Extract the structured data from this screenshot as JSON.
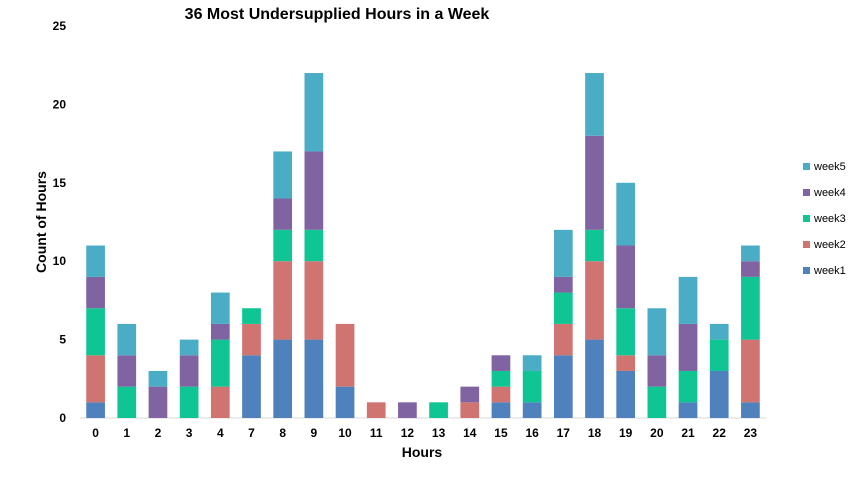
{
  "chart_data": {
    "type": "bar",
    "stacked": true,
    "title": "36 Most Undersupplied Hours in a Week",
    "xlabel": "Hours",
    "ylabel": "Count of Hours",
    "ylim": [
      0,
      25
    ],
    "yticks": [
      0,
      5,
      10,
      15,
      20,
      25
    ],
    "grid": false,
    "legend_position": "right",
    "categories": [
      "0",
      "1",
      "2",
      "3",
      "4",
      "7",
      "8",
      "9",
      "10",
      "11",
      "12",
      "13",
      "14",
      "15",
      "16",
      "17",
      "18",
      "19",
      "20",
      "21",
      "22",
      "23"
    ],
    "series": [
      {
        "name": "week1",
        "color": "#4f81bd",
        "values": [
          1,
          0,
          0,
          0,
          0,
          4,
          5,
          5,
          2,
          0,
          0,
          0,
          0,
          1,
          1,
          4,
          5,
          3,
          0,
          1,
          3,
          1
        ]
      },
      {
        "name": "week2",
        "color": "#d07471",
        "values": [
          3,
          0,
          0,
          0,
          2,
          2,
          5,
          5,
          4,
          1,
          0,
          0,
          1,
          1,
          0,
          2,
          5,
          1,
          0,
          0,
          0,
          4
        ]
      },
      {
        "name": "week3",
        "color": "#0fc594",
        "values": [
          3,
          2,
          0,
          2,
          3,
          1,
          2,
          2,
          0,
          0,
          0,
          1,
          0,
          1,
          2,
          2,
          2,
          3,
          2,
          2,
          2,
          4
        ]
      },
      {
        "name": "week4",
        "color": "#8064a2",
        "values": [
          2,
          2,
          2,
          2,
          1,
          0,
          2,
          5,
          0,
          0,
          1,
          0,
          1,
          1,
          0,
          1,
          6,
          4,
          2,
          3,
          0,
          1
        ]
      },
      {
        "name": "week5",
        "color": "#4bacc6",
        "values": [
          2,
          2,
          1,
          1,
          2,
          0,
          3,
          5,
          0,
          0,
          0,
          0,
          0,
          0,
          1,
          3,
          4,
          4,
          3,
          3,
          1,
          1
        ]
      }
    ]
  }
}
